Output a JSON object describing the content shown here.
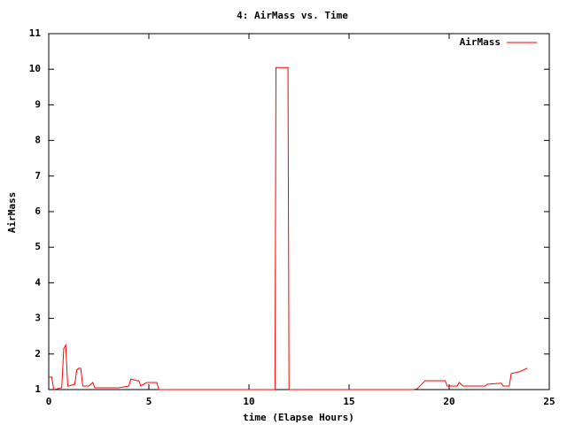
{
  "chart_data": {
    "type": "line",
    "title": "4: AirMass vs. Time",
    "xlabel": "time (Elapse Hours)",
    "ylabel": "AirMass",
    "x": [
      0,
      0.15,
      0.25,
      0.65,
      0.75,
      0.85,
      0.95,
      1.0,
      1.3,
      1.4,
      1.5,
      1.6,
      1.7,
      2.0,
      2.2,
      2.3,
      3.0,
      3.5,
      4.0,
      4.1,
      4.4,
      4.5,
      4.6,
      4.9,
      5.4,
      5.5,
      11.3,
      11.35,
      11.95,
      12.0,
      18.2,
      18.4,
      18.8,
      18.9,
      19.8,
      19.9,
      20.4,
      20.5,
      20.7,
      21.8,
      21.9,
      22.6,
      22.7,
      23.0,
      23.1,
      23.5,
      23.9
    ],
    "series": [
      {
        "name": "AirMass",
        "color": "#ff0000",
        "values": [
          1.35,
          1.35,
          1.0,
          1.05,
          2.15,
          2.25,
          1.1,
          1.1,
          1.15,
          1.55,
          1.6,
          1.6,
          1.1,
          1.1,
          1.2,
          1.05,
          1.05,
          1.05,
          1.1,
          1.3,
          1.25,
          1.25,
          1.1,
          1.2,
          1.2,
          1.0,
          1.0,
          10.05,
          10.05,
          1.0,
          1.0,
          1.02,
          1.25,
          1.25,
          1.25,
          1.1,
          1.1,
          1.2,
          1.1,
          1.1,
          1.15,
          1.18,
          1.1,
          1.1,
          1.45,
          1.5,
          1.6
        ]
      }
    ],
    "xlim": [
      0,
      25
    ],
    "ylim": [
      1,
      11
    ],
    "xticks": [
      0,
      5,
      10,
      15,
      20,
      25
    ],
    "yticks": [
      1,
      2,
      3,
      4,
      5,
      6,
      7,
      8,
      9,
      10,
      11
    ],
    "legend": "top-right"
  }
}
